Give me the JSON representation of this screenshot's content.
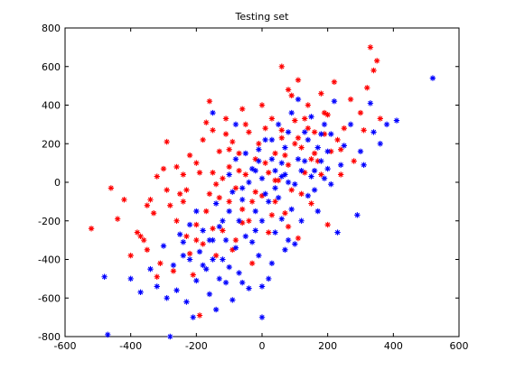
{
  "chart_data": {
    "type": "scatter",
    "title": "Testing set",
    "xlabel": "",
    "ylabel": "",
    "xlim": [
      -600,
      600
    ],
    "ylim": [
      -800,
      800
    ],
    "xticks": [
      -600,
      -400,
      -200,
      0,
      200,
      400,
      600
    ],
    "yticks": [
      -800,
      -600,
      -400,
      -200,
      0,
      200,
      400,
      600,
      800
    ],
    "xtick_labels": [
      "-600",
      "-400",
      "-200",
      "0",
      "200",
      "400",
      "600"
    ],
    "ytick_labels": [
      "-800",
      "-600",
      "-400",
      "-200",
      "0",
      "200",
      "400",
      "600",
      "800"
    ],
    "grid": false,
    "marker": "asterisk",
    "series": [
      {
        "color": "#ff0000",
        "points": [
          [
            -520,
            -240
          ],
          [
            -460,
            -30
          ],
          [
            -440,
            -190
          ],
          [
            -420,
            -90
          ],
          [
            -380,
            -260
          ],
          [
            -370,
            -280
          ],
          [
            -360,
            -300
          ],
          [
            -350,
            -350
          ],
          [
            -340,
            -90
          ],
          [
            -330,
            -160
          ],
          [
            -320,
            30
          ],
          [
            -310,
            -420
          ],
          [
            -300,
            70
          ],
          [
            -290,
            210
          ],
          [
            -290,
            -40
          ],
          [
            -280,
            -120
          ],
          [
            -270,
            -460
          ],
          [
            -260,
            -200
          ],
          [
            -250,
            -60
          ],
          [
            -240,
            40
          ],
          [
            -230,
            -280
          ],
          [
            -220,
            140
          ],
          [
            -220,
            -370
          ],
          [
            -210,
            -480
          ],
          [
            -200,
            100
          ],
          [
            -200,
            -220
          ],
          [
            -190,
            50
          ],
          [
            -180,
            220
          ],
          [
            -180,
            -320
          ],
          [
            -170,
            -150
          ],
          [
            -160,
            420
          ],
          [
            -160,
            -60
          ],
          [
            -150,
            270
          ],
          [
            -140,
            -10
          ],
          [
            -140,
            -380
          ],
          [
            -130,
            160
          ],
          [
            -120,
            -250
          ],
          [
            -110,
            330
          ],
          [
            -100,
            80
          ],
          [
            -100,
            -100
          ],
          [
            -90,
            210
          ],
          [
            -80,
            -30
          ],
          [
            -80,
            -300
          ],
          [
            -70,
            150
          ],
          [
            -60,
            380
          ],
          [
            -60,
            -140
          ],
          [
            -50,
            40
          ],
          [
            -40,
            260
          ],
          [
            -40,
            -200
          ],
          [
            -30,
            -420
          ],
          [
            -20,
            120
          ],
          [
            -10,
            200
          ],
          [
            0,
            -70
          ],
          [
            10,
            280
          ],
          [
            20,
            50
          ],
          [
            20,
            -260
          ],
          [
            30,
            330
          ],
          [
            40,
            150
          ],
          [
            40,
            -100
          ],
          [
            50,
            10
          ],
          [
            60,
            600
          ],
          [
            60,
            230
          ],
          [
            70,
            -160
          ],
          [
            80,
            480
          ],
          [
            80,
            90
          ],
          [
            90,
            -40
          ],
          [
            100,
            320
          ],
          [
            110,
            530
          ],
          [
            110,
            -290
          ],
          [
            120,
            180
          ],
          [
            130,
            50
          ],
          [
            140,
            400
          ],
          [
            150,
            -110
          ],
          [
            160,
            260
          ],
          [
            170,
            110
          ],
          [
            180,
            460
          ],
          [
            190,
            360
          ],
          [
            200,
            -220
          ],
          [
            210,
            160
          ],
          [
            220,
            520
          ],
          [
            230,
            220
          ],
          [
            240,
            40
          ],
          [
            250,
            280
          ],
          [
            270,
            430
          ],
          [
            280,
            110
          ],
          [
            300,
            360
          ],
          [
            310,
            270
          ],
          [
            320,
            490
          ],
          [
            330,
            700
          ],
          [
            340,
            580
          ],
          [
            350,
            630
          ],
          [
            360,
            330
          ],
          [
            -400,
            -380
          ],
          [
            -350,
            -120
          ],
          [
            -260,
            80
          ],
          [
            -230,
            -40
          ],
          [
            -170,
            310
          ],
          [
            -150,
            -240
          ],
          [
            -120,
            20
          ],
          [
            -90,
            -350
          ],
          [
            -50,
            300
          ],
          [
            -20,
            -50
          ],
          [
            0,
            400
          ],
          [
            30,
            -170
          ],
          [
            70,
            140
          ],
          [
            100,
            200
          ],
          [
            120,
            -60
          ],
          [
            140,
            280
          ],
          [
            180,
            40
          ],
          [
            200,
            350
          ],
          [
            -190,
            -690
          ],
          [
            -320,
            -490
          ],
          [
            -240,
            -100
          ],
          [
            -200,
            -300
          ],
          [
            -100,
            170
          ],
          [
            -60,
            -210
          ],
          [
            10,
            100
          ],
          [
            60,
            270
          ],
          [
            90,
            450
          ],
          [
            130,
            330
          ],
          [
            160,
            150
          ],
          [
            190,
            250
          ],
          [
            -150,
            50
          ],
          [
            -130,
            -80
          ],
          [
            -110,
            250
          ],
          [
            -70,
            60
          ],
          [
            -30,
            -100
          ],
          [
            40,
            10
          ],
          [
            80,
            -230
          ],
          [
            110,
            230
          ],
          [
            150,
            120
          ],
          [
            240,
            170
          ]
        ]
      },
      {
        "color": "#0000ff",
        "points": [
          [
            -480,
            -490
          ],
          [
            -470,
            -790
          ],
          [
            -400,
            -500
          ],
          [
            -370,
            -570
          ],
          [
            -340,
            -450
          ],
          [
            -320,
            -540
          ],
          [
            -300,
            -330
          ],
          [
            -290,
            -600
          ],
          [
            -280,
            -800
          ],
          [
            -270,
            -430
          ],
          [
            -260,
            -560
          ],
          [
            -250,
            -270
          ],
          [
            -240,
            -310
          ],
          [
            -230,
            -620
          ],
          [
            -220,
            -400
          ],
          [
            -210,
            -700
          ],
          [
            -200,
            -510
          ],
          [
            -190,
            -360
          ],
          [
            -180,
            -250
          ],
          [
            -170,
            -450
          ],
          [
            -160,
            -580
          ],
          [
            -150,
            -300
          ],
          [
            -140,
            -660
          ],
          [
            -130,
            -230
          ],
          [
            -120,
            -400
          ],
          [
            -110,
            -520
          ],
          [
            -100,
            -150
          ],
          [
            -90,
            -610
          ],
          [
            -80,
            -340
          ],
          [
            -70,
            -470
          ],
          [
            -60,
            -90
          ],
          [
            -50,
            -280
          ],
          [
            -40,
            -550
          ],
          [
            -30,
            70
          ],
          [
            -20,
            -150
          ],
          [
            -10,
            -380
          ],
          [
            0,
            -700
          ],
          [
            10,
            -60
          ],
          [
            20,
            -500
          ],
          [
            30,
            120
          ],
          [
            40,
            -260
          ],
          [
            50,
            -80
          ],
          [
            60,
            30
          ],
          [
            70,
            -350
          ],
          [
            80,
            260
          ],
          [
            90,
            -140
          ],
          [
            100,
            -10
          ],
          [
            110,
            430
          ],
          [
            120,
            -200
          ],
          [
            130,
            110
          ],
          [
            140,
            -70
          ],
          [
            150,
            340
          ],
          [
            160,
            60
          ],
          [
            170,
            -150
          ],
          [
            180,
            250
          ],
          [
            190,
            20
          ],
          [
            200,
            160
          ],
          [
            210,
            -10
          ],
          [
            220,
            420
          ],
          [
            230,
            -260
          ],
          [
            240,
            90
          ],
          [
            250,
            190
          ],
          [
            270,
            300
          ],
          [
            290,
            -170
          ],
          [
            300,
            160
          ],
          [
            310,
            90
          ],
          [
            330,
            410
          ],
          [
            340,
            260
          ],
          [
            360,
            200
          ],
          [
            380,
            300
          ],
          [
            410,
            320
          ],
          [
            520,
            540
          ],
          [
            -160,
            -300
          ],
          [
            -140,
            -110
          ],
          [
            -120,
            -200
          ],
          [
            -100,
            40
          ],
          [
            -80,
            120
          ],
          [
            -60,
            -30
          ],
          [
            -40,
            0
          ],
          [
            -20,
            60
          ],
          [
            0,
            -200
          ],
          [
            20,
            -100
          ],
          [
            40,
            60
          ],
          [
            60,
            -190
          ],
          [
            80,
            0
          ],
          [
            100,
            -320
          ],
          [
            120,
            60
          ],
          [
            140,
            220
          ],
          [
            160,
            -40
          ],
          [
            180,
            110
          ],
          [
            200,
            70
          ],
          [
            -200,
            -150
          ],
          [
            -180,
            -430
          ],
          [
            -150,
            -400
          ],
          [
            -110,
            -300
          ],
          [
            -90,
            -50
          ],
          [
            -70,
            -200
          ],
          [
            -50,
            150
          ],
          [
            -30,
            -310
          ],
          [
            -10,
            110
          ],
          [
            10,
            220
          ],
          [
            30,
            -420
          ],
          [
            50,
            300
          ],
          [
            70,
            180
          ],
          [
            90,
            360
          ],
          [
            110,
            120
          ],
          [
            130,
            260
          ],
          [
            150,
            30
          ],
          [
            170,
            180
          ],
          [
            190,
            300
          ],
          [
            210,
            250
          ],
          [
            -240,
            -380
          ],
          [
            -220,
            -220
          ],
          [
            -130,
            -500
          ],
          [
            -100,
            -440
          ],
          [
            -60,
            -520
          ],
          [
            -20,
            -250
          ],
          [
            0,
            20
          ],
          [
            40,
            -30
          ],
          [
            60,
            100
          ],
          [
            -10,
            170
          ],
          [
            30,
            220
          ],
          [
            70,
            40
          ],
          [
            -150,
            360
          ],
          [
            -80,
            300
          ],
          [
            0,
            -540
          ],
          [
            80,
            -300
          ]
        ]
      }
    ]
  }
}
